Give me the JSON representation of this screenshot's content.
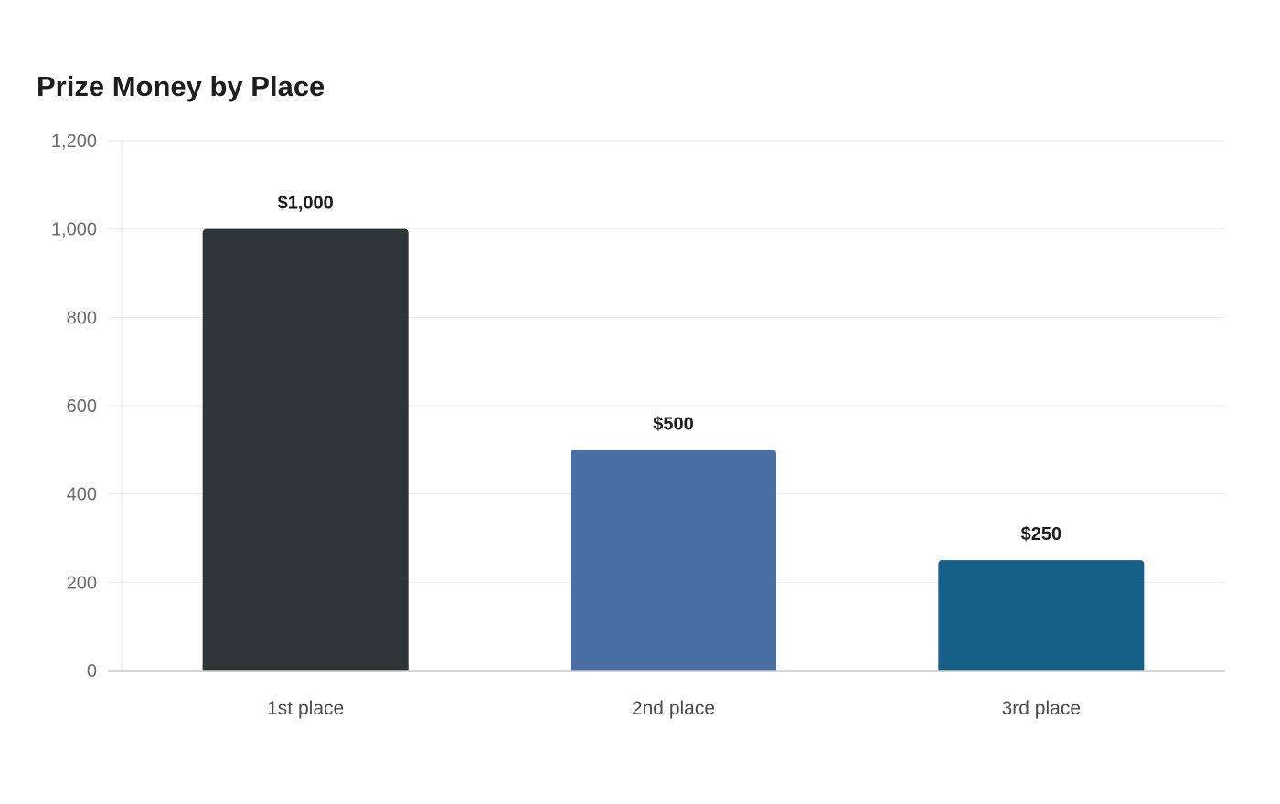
{
  "chart_data": {
    "type": "bar",
    "title": "Prize Money by Place",
    "categories": [
      "1st place",
      "2nd place",
      "3rd place"
    ],
    "values": [
      1000,
      500,
      250
    ],
    "data_labels": [
      "$1,000",
      "$500",
      "$250"
    ],
    "colors": [
      "#2e3538",
      "#4a6fa5",
      "#166088"
    ],
    "xlabel": "",
    "ylabel": "",
    "ylim": [
      0,
      1200
    ],
    "yticks": [
      0,
      200,
      400,
      600,
      800,
      1000,
      1200
    ],
    "ytick_labels": [
      "0",
      "200",
      "400",
      "600",
      "800",
      "1,000",
      "1,200"
    ],
    "grid": true,
    "legend": "none"
  }
}
